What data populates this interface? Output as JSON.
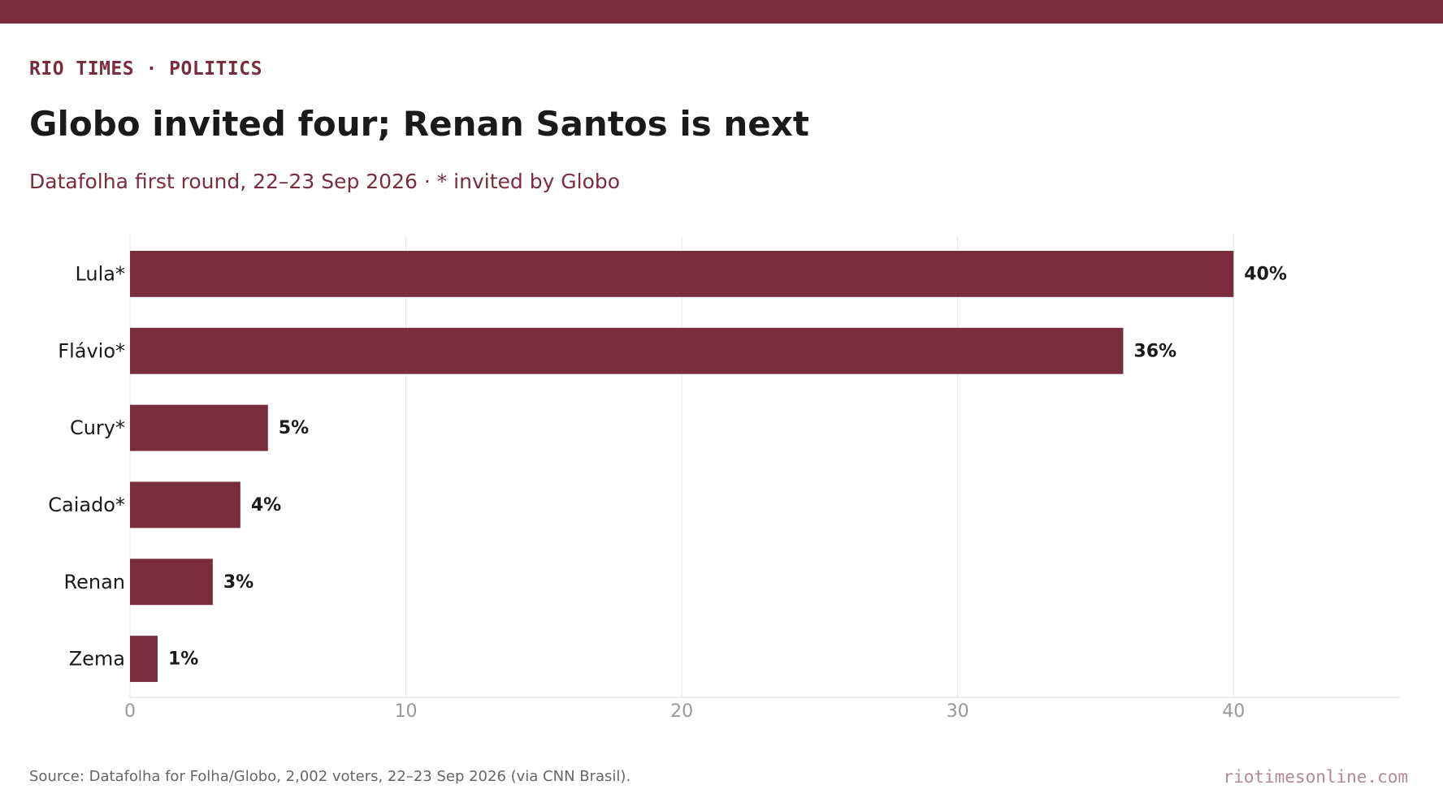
{
  "brand": {
    "kicker": "RIO TIMES · POLITICS",
    "site": "riotimesonline.com",
    "accent_color": "#7a2c3f",
    "site_color": "#b08a95"
  },
  "headline": "Globo invited four; Renan Santos is next",
  "subtitle": "Datafolha first round, 22–23 Sep 2026 · * invited by Globo",
  "source": "Source: Datafolha for Folha/Globo, 2,002 voters, 22–23 Sep 2026 (via CNN Brasil).",
  "chart_data": {
    "type": "bar",
    "orientation": "horizontal",
    "categories": [
      "Lula*",
      "Flávio*",
      "Cury*",
      "Caiado*",
      "Renan",
      "Zema"
    ],
    "values": [
      40,
      36,
      5,
      4,
      3,
      1
    ],
    "value_labels": [
      "40%",
      "36%",
      "5%",
      "4%",
      "3%",
      "1%"
    ],
    "x_ticks": [
      "0",
      "10",
      "20",
      "30",
      "40"
    ],
    "x_tick_values": [
      0,
      10,
      20,
      30,
      40
    ],
    "xlim": [
      0,
      46
    ],
    "grid": true,
    "bar_color": "#7a2c3f"
  }
}
